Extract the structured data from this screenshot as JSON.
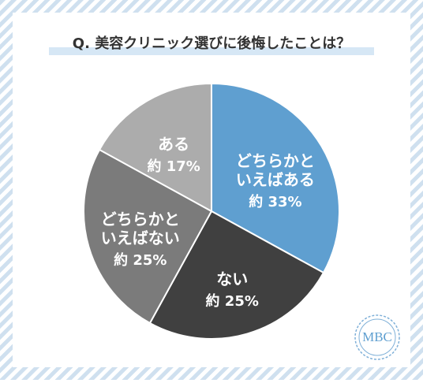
{
  "chart_data": {
    "type": "pie",
    "title": "Q. 美容クリニック選びに後悔したことは？",
    "categories": [
      "どちらかといえばある",
      "ない",
      "どちらかといえばない",
      "ある"
    ],
    "values": [
      33,
      25,
      25,
      17
    ],
    "value_labels": [
      "約 33%",
      "約 25%",
      "約 25%",
      "約 17%"
    ],
    "colors": [
      "#5f9fd0",
      "#404040",
      "#7b7b7b",
      "#acacac"
    ]
  },
  "logo": "MBC"
}
